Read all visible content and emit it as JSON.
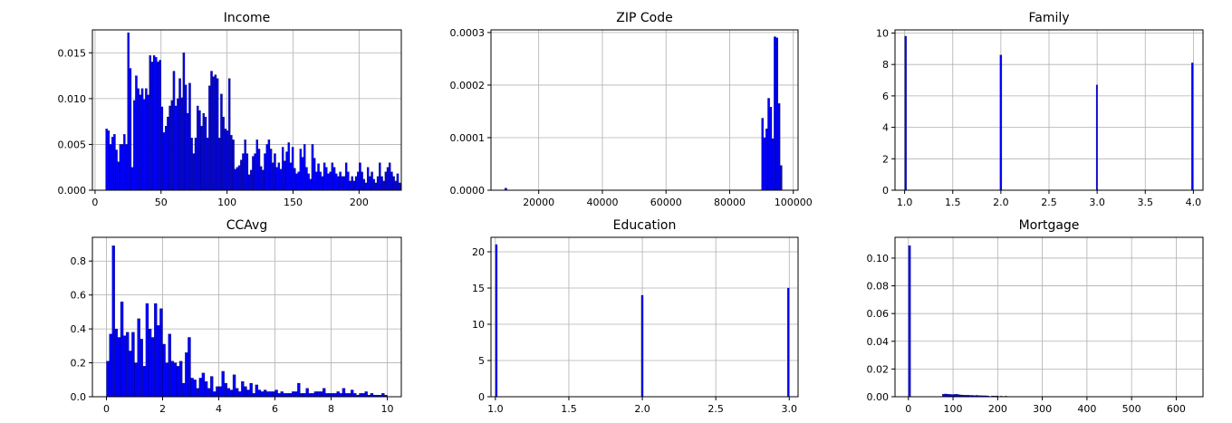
{
  "chart_data": [
    {
      "type": "bar",
      "title": "Income",
      "xlim": [
        -2,
        232
      ],
      "ylim": [
        0,
        0.0175
      ],
      "grid": true,
      "bar_color": "#0000ff",
      "edge_color": "#000000",
      "xticks": [
        {
          "v": 0,
          "label": "0"
        },
        {
          "v": 50,
          "label": "50"
        },
        {
          "v": 100,
          "label": "100"
        },
        {
          "v": 150,
          "label": "150"
        },
        {
          "v": 200,
          "label": "200"
        }
      ],
      "yticks": [
        {
          "v": 0,
          "label": "0.000"
        },
        {
          "v": 0.005,
          "label": "0.005"
        },
        {
          "v": 0.01,
          "label": "0.010"
        },
        {
          "v": 0.015,
          "label": "0.015"
        }
      ],
      "bin_start": 8,
      "bin_width": 1.5,
      "values": [
        0.0067,
        0.0065,
        0.005,
        0.0058,
        0.0061,
        0.0044,
        0.0031,
        0.005,
        0.005,
        0.0061,
        0.005,
        0.0172,
        0.0133,
        0.0025,
        0.0098,
        0.0125,
        0.0111,
        0.0104,
        0.0111,
        0.0099,
        0.0111,
        0.0104,
        0.0147,
        0.014,
        0.0147,
        0.0145,
        0.014,
        0.0142,
        0.0091,
        0.0063,
        0.007,
        0.008,
        0.0092,
        0.0098,
        0.013,
        0.0092,
        0.01,
        0.0122,
        0.0101,
        0.015,
        0.0115,
        0.0084,
        0.0117,
        0.0057,
        0.004,
        0.0057,
        0.0092,
        0.0087,
        0.007,
        0.0084,
        0.008,
        0.0057,
        0.0114,
        0.013,
        0.0124,
        0.0126,
        0.0122,
        0.0057,
        0.0105,
        0.008,
        0.0067,
        0.0065,
        0.0122,
        0.006,
        0.0055,
        0.0023,
        0.0025,
        0.0027,
        0.0033,
        0.004,
        0.0055,
        0.004,
        0.0017,
        0.0022,
        0.0037,
        0.004,
        0.0055,
        0.0045,
        0.0026,
        0.0022,
        0.004,
        0.005,
        0.0055,
        0.0045,
        0.003,
        0.004,
        0.0025,
        0.003,
        0.0023,
        0.0047,
        0.0032,
        0.0042,
        0.0052,
        0.003,
        0.0047,
        0.0024,
        0.0018,
        0.002,
        0.0045,
        0.0036,
        0.005,
        0.0025,
        0.0018,
        0.0012,
        0.005,
        0.0035,
        0.002,
        0.0029,
        0.002,
        0.0015,
        0.003,
        0.0025,
        0.0018,
        0.002,
        0.003,
        0.0025,
        0.0018,
        0.0015,
        0.002,
        0.0015,
        0.0015,
        0.003,
        0.002,
        0.001,
        0.0015,
        0.001,
        0.0015,
        0.002,
        0.003,
        0.002,
        0.0012,
        0.0008,
        0.0025,
        0.0015,
        0.002,
        0.0012,
        0.0008,
        0.0015,
        0.003,
        0.0015,
        0.001,
        0.002,
        0.0025,
        0.003,
        0.002,
        0.0015,
        0.001,
        0.0018,
        0.0008,
        0.0006,
        0.0008,
        0.0012,
        0.001,
        0.0006,
        0.0008,
        0.0005,
        0.0003,
        0.0004,
        0.0002,
        0.0,
        0.0,
        0.0001,
        0.0,
        0.0002,
        0.0,
        0.0,
        0.0,
        0.0001,
        0.0,
        0.0,
        0.0001,
        0.0
      ]
    },
    {
      "type": "bar",
      "title": "ZIP Code",
      "xlim": [
        5000,
        101500
      ],
      "ylim": [
        0,
        0.000305
      ],
      "grid": true,
      "bar_color": "#0000ff",
      "edge_color": "#000000",
      "xticks": [
        {
          "v": 20000,
          "label": "20000"
        },
        {
          "v": 40000,
          "label": "40000"
        },
        {
          "v": 60000,
          "label": "60000"
        },
        {
          "v": 80000,
          "label": "80000"
        },
        {
          "v": 100000,
          "label": "100000"
        }
      ],
      "yticks": [
        {
          "v": 0,
          "label": "0.0000"
        },
        {
          "v": 0.0001,
          "label": "0.0001"
        },
        {
          "v": 0.0002,
          "label": "0.0002"
        },
        {
          "v": 0.0003,
          "label": "0.0003"
        }
      ],
      "bins": [
        {
          "x": 9300,
          "w": 700,
          "v": 4e-06
        },
        {
          "x": 90000,
          "w": 650,
          "v": 0.000137
        },
        {
          "x": 90650,
          "w": 650,
          "v": 0.0001
        },
        {
          "x": 91300,
          "w": 650,
          "v": 0.000117
        },
        {
          "x": 91950,
          "w": 650,
          "v": 0.000175
        },
        {
          "x": 92600,
          "w": 650,
          "v": 0.000158
        },
        {
          "x": 93250,
          "w": 650,
          "v": 9.8e-05
        },
        {
          "x": 93900,
          "w": 650,
          "v": 0.000292
        },
        {
          "x": 94550,
          "w": 650,
          "v": 0.00029
        },
        {
          "x": 95200,
          "w": 650,
          "v": 0.000165
        },
        {
          "x": 95850,
          "w": 650,
          "v": 4.7e-05
        }
      ]
    },
    {
      "type": "bar",
      "title": "Family",
      "xlim": [
        0.9,
        4.1
      ],
      "ylim": [
        0,
        10.2
      ],
      "grid": true,
      "bar_color": "#0000ff",
      "edge_color": "#000000",
      "xticks": [
        {
          "v": 1.0,
          "label": "1.0"
        },
        {
          "v": 1.5,
          "label": "1.5"
        },
        {
          "v": 2.0,
          "label": "2.0"
        },
        {
          "v": 2.5,
          "label": "2.5"
        },
        {
          "v": 3.0,
          "label": "3.0"
        },
        {
          "v": 3.5,
          "label": "3.5"
        },
        {
          "v": 4.0,
          "label": "4.0"
        }
      ],
      "yticks": [
        {
          "v": 0,
          "label": "0"
        },
        {
          "v": 2,
          "label": "2"
        },
        {
          "v": 4,
          "label": "4"
        },
        {
          "v": 6,
          "label": "6"
        },
        {
          "v": 8,
          "label": "8"
        },
        {
          "v": 10,
          "label": "10"
        }
      ],
      "bins": [
        {
          "x": 1.0,
          "w": 0.02,
          "v": 9.8
        },
        {
          "x": 1.99,
          "w": 0.02,
          "v": 8.6
        },
        {
          "x": 2.99,
          "w": 0.015,
          "v": 6.7
        },
        {
          "x": 3.98,
          "w": 0.02,
          "v": 8.1
        }
      ]
    },
    {
      "type": "bar",
      "title": "CCAvg",
      "xlim": [
        -0.5,
        10.5
      ],
      "ylim": [
        0,
        0.94
      ],
      "grid": true,
      "bar_color": "#0000ff",
      "edge_color": "#000000",
      "xticks": [
        {
          "v": 0,
          "label": "0"
        },
        {
          "v": 2,
          "label": "2"
        },
        {
          "v": 4,
          "label": "4"
        },
        {
          "v": 6,
          "label": "6"
        },
        {
          "v": 8,
          "label": "8"
        },
        {
          "v": 10,
          "label": "10"
        }
      ],
      "yticks": [
        {
          "v": 0,
          "label": "0.0"
        },
        {
          "v": 0.2,
          "label": "0.2"
        },
        {
          "v": 0.4,
          "label": "0.4"
        },
        {
          "v": 0.6,
          "label": "0.6"
        },
        {
          "v": 0.8,
          "label": "0.8"
        }
      ],
      "bin_start": 0,
      "bin_width": 0.1,
      "values": [
        0.21,
        0.37,
        0.89,
        0.4,
        0.35,
        0.56,
        0.36,
        0.38,
        0.27,
        0.38,
        0.2,
        0.46,
        0.34,
        0.18,
        0.55,
        0.4,
        0.35,
        0.55,
        0.42,
        0.52,
        0.31,
        0.2,
        0.37,
        0.21,
        0.2,
        0.18,
        0.21,
        0.08,
        0.26,
        0.35,
        0.11,
        0.1,
        0.05,
        0.11,
        0.14,
        0.09,
        0.05,
        0.12,
        0.03,
        0.06,
        0.06,
        0.15,
        0.08,
        0.05,
        0.04,
        0.13,
        0.05,
        0.03,
        0.09,
        0.06,
        0.04,
        0.08,
        0.02,
        0.07,
        0.04,
        0.03,
        0.04,
        0.03,
        0.03,
        0.03,
        0.04,
        0.02,
        0.03,
        0.02,
        0.02,
        0.02,
        0.03,
        0.03,
        0.08,
        0.02,
        0.02,
        0.05,
        0.02,
        0.02,
        0.03,
        0.03,
        0.03,
        0.05,
        0.02,
        0.02,
        0.02,
        0.02,
        0.03,
        0.02,
        0.05,
        0.02,
        0.02,
        0.04,
        0.02,
        0.01,
        0.02,
        0.02,
        0.03,
        0.01,
        0.02,
        0.01,
        0.01,
        0.01,
        0.02,
        0.01,
        0.0
      ]
    },
    {
      "type": "bar",
      "title": "Education",
      "xlim": [
        0.97,
        3.06
      ],
      "ylim": [
        0,
        22
      ],
      "grid": true,
      "bar_color": "#0000ff",
      "edge_color": "#000000",
      "xticks": [
        {
          "v": 1.0,
          "label": "1.0"
        },
        {
          "v": 1.5,
          "label": "1.5"
        },
        {
          "v": 2.0,
          "label": "2.0"
        },
        {
          "v": 2.5,
          "label": "2.5"
        },
        {
          "v": 3.0,
          "label": "3.0"
        }
      ],
      "yticks": [
        {
          "v": 0,
          "label": "0"
        },
        {
          "v": 5,
          "label": "5"
        },
        {
          "v": 10,
          "label": "10"
        },
        {
          "v": 15,
          "label": "15"
        },
        {
          "v": 20,
          "label": "20"
        }
      ],
      "bins": [
        {
          "x": 1.0,
          "w": 0.013,
          "v": 21.0
        },
        {
          "x": 1.993,
          "w": 0.013,
          "v": 14.0
        },
        {
          "x": 2.987,
          "w": 0.013,
          "v": 15.0
        }
      ]
    },
    {
      "type": "bar",
      "title": "Mortgage",
      "xlim": [
        -30,
        660
      ],
      "ylim": [
        0,
        0.115
      ],
      "grid": true,
      "bar_color": "#0000ff",
      "edge_color": "#000000",
      "xticks": [
        {
          "v": 0,
          "label": "0"
        },
        {
          "v": 100,
          "label": "100"
        },
        {
          "v": 200,
          "label": "200"
        },
        {
          "v": 300,
          "label": "300"
        },
        {
          "v": 400,
          "label": "400"
        },
        {
          "v": 500,
          "label": "500"
        },
        {
          "v": 600,
          "label": "600"
        }
      ],
      "yticks": [
        {
          "v": 0,
          "label": "0.00"
        },
        {
          "v": 0.02,
          "label": "0.02"
        },
        {
          "v": 0.04,
          "label": "0.04"
        },
        {
          "v": 0.06,
          "label": "0.06"
        },
        {
          "v": 0.08,
          "label": "0.08"
        },
        {
          "v": 0.1,
          "label": "0.10"
        }
      ],
      "bins": [
        {
          "x": 0,
          "w": 5,
          "v": 0.109
        },
        {
          "x": 76,
          "w": 5,
          "v": 0.0018
        },
        {
          "x": 81,
          "w": 5,
          "v": 0.002
        },
        {
          "x": 86,
          "w": 5,
          "v": 0.0018
        },
        {
          "x": 91,
          "w": 5,
          "v": 0.0017
        },
        {
          "x": 96,
          "w": 5,
          "v": 0.0016
        },
        {
          "x": 101,
          "w": 5,
          "v": 0.0017
        },
        {
          "x": 106,
          "w": 5,
          "v": 0.0018
        },
        {
          "x": 111,
          "w": 5,
          "v": 0.0015
        },
        {
          "x": 116,
          "w": 5,
          "v": 0.0013
        },
        {
          "x": 121,
          "w": 5,
          "v": 0.0012
        },
        {
          "x": 126,
          "w": 5,
          "v": 0.0011
        },
        {
          "x": 131,
          "w": 5,
          "v": 0.0011
        },
        {
          "x": 136,
          "w": 5,
          "v": 0.001
        },
        {
          "x": 141,
          "w": 5,
          "v": 0.001
        },
        {
          "x": 146,
          "w": 5,
          "v": 0.0009
        },
        {
          "x": 151,
          "w": 5,
          "v": 0.001
        },
        {
          "x": 156,
          "w": 5,
          "v": 0.0008
        },
        {
          "x": 161,
          "w": 5,
          "v": 0.0008
        },
        {
          "x": 166,
          "w": 5,
          "v": 0.0007
        },
        {
          "x": 171,
          "w": 5,
          "v": 0.0007
        },
        {
          "x": 176,
          "w": 5,
          "v": 0.0006
        },
        {
          "x": 186,
          "w": 5,
          "v": 0.0006
        },
        {
          "x": 191,
          "w": 5,
          "v": 0.0005
        },
        {
          "x": 196,
          "w": 5,
          "v": 0.0006
        },
        {
          "x": 206,
          "w": 5,
          "v": 0.0004
        },
        {
          "x": 216,
          "w": 5,
          "v": 0.0004
        }
      ]
    }
  ]
}
